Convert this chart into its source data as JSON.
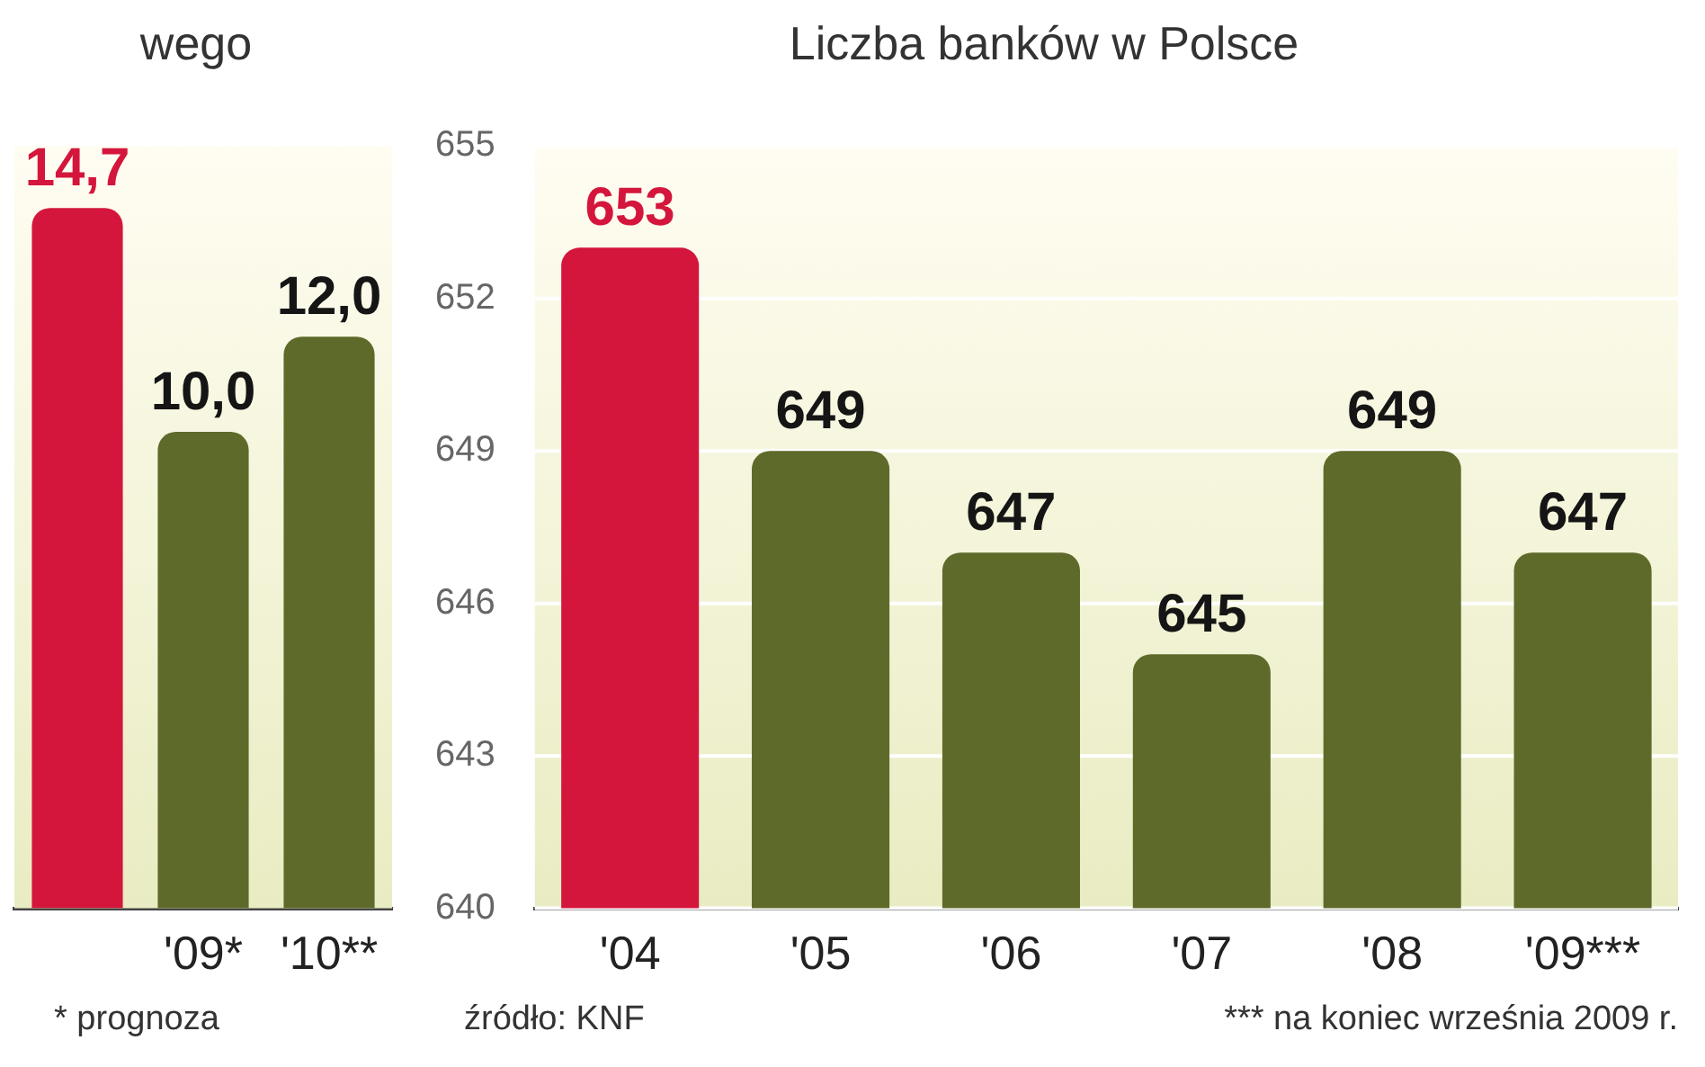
{
  "chart_data": [
    {
      "type": "bar",
      "title": "wego",
      "categories": [
        null,
        "'09*",
        "'10**"
      ],
      "values": [
        14.7,
        10.0,
        12.0
      ],
      "value_labels": [
        "14,7",
        "10,0",
        "12,0"
      ],
      "colors": [
        "#d4163c",
        "#5e6a2a",
        "#5e6a2a"
      ],
      "ylim": [
        0,
        16
      ],
      "tick_labels": "x",
      "grid": false,
      "legend": false,
      "annotations": [
        "* prognoza"
      ]
    },
    {
      "type": "bar",
      "title": "Liczba banków w Polsce",
      "categories": [
        "'04",
        "'05",
        "'06",
        "'07",
        "'08",
        "'09***"
      ],
      "values": [
        653,
        649,
        647,
        645,
        649,
        647
      ],
      "colors": [
        "#d4163c",
        "#5e6a2a",
        "#5e6a2a",
        "#5e6a2a",
        "#5e6a2a",
        "#5e6a2a"
      ],
      "ylim": [
        640,
        655
      ],
      "yticks": [
        640,
        643,
        646,
        649,
        652,
        655
      ],
      "grid": "y",
      "legend": false,
      "data_labels": true,
      "annotations": [
        "źródło: KNF",
        "*** na koniec września 2009 r."
      ]
    }
  ]
}
